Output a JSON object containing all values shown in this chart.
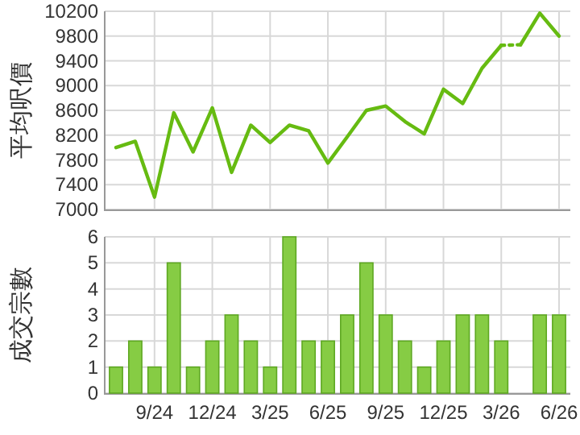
{
  "chart_data": [
    {
      "type": "line",
      "ylabel": "平均呎價",
      "categories": [
        null,
        null,
        null,
        null,
        null,
        null,
        null,
        null,
        null,
        null,
        null,
        null,
        null,
        null,
        null,
        null,
        null,
        null,
        null,
        null,
        null,
        null,
        null,
        null
      ],
      "series": [
        {
          "color": "#66bb11",
          "line_style": "solid",
          "values": [
            8000,
            8100,
            7200,
            8560,
            7930,
            8640,
            7600,
            8360,
            8080,
            8360,
            8270,
            7750,
            8170,
            8600,
            8670,
            8420,
            8220,
            8940,
            8710,
            9280,
            9650,
            null,
            null,
            null
          ]
        },
        {
          "color": "#66bb11",
          "line_style": "dotted",
          "values": [
            null,
            null,
            null,
            null,
            null,
            null,
            null,
            null,
            null,
            null,
            null,
            null,
            null,
            null,
            null,
            null,
            null,
            null,
            null,
            null,
            9650,
            9660,
            null,
            null
          ]
        },
        {
          "color": "#66bb11",
          "line_style": "solid",
          "values": [
            null,
            null,
            null,
            null,
            null,
            null,
            null,
            null,
            null,
            null,
            null,
            null,
            null,
            null,
            null,
            null,
            null,
            null,
            null,
            null,
            null,
            9660,
            10170,
            9800
          ]
        }
      ],
      "ylim": [
        7000,
        10200
      ],
      "yticks": [
        7000,
        7400,
        7800,
        8200,
        8600,
        9000,
        9400,
        9800,
        10200
      ],
      "grid": true,
      "tick_labels": "y",
      "marker": "none"
    },
    {
      "type": "bar",
      "ylabel": "成交宗數",
      "categories": [
        null,
        null,
        "9/24",
        null,
        null,
        "12/24",
        null,
        null,
        "3/25",
        null,
        null,
        "6/25",
        null,
        null,
        "9/25",
        null,
        null,
        "12/25",
        null,
        null,
        "3/26",
        null,
        null,
        "6/26"
      ],
      "values": [
        1,
        2,
        1,
        5,
        1,
        2,
        3,
        2,
        1,
        6,
        2,
        2,
        3,
        5,
        3,
        2,
        1,
        2,
        3,
        3,
        2,
        0,
        3,
        3
      ],
      "color": "#86cc44",
      "ylim": [
        0,
        6
      ],
      "yticks": [
        0,
        1,
        2,
        3,
        4,
        5,
        6
      ],
      "grid": true
    }
  ]
}
